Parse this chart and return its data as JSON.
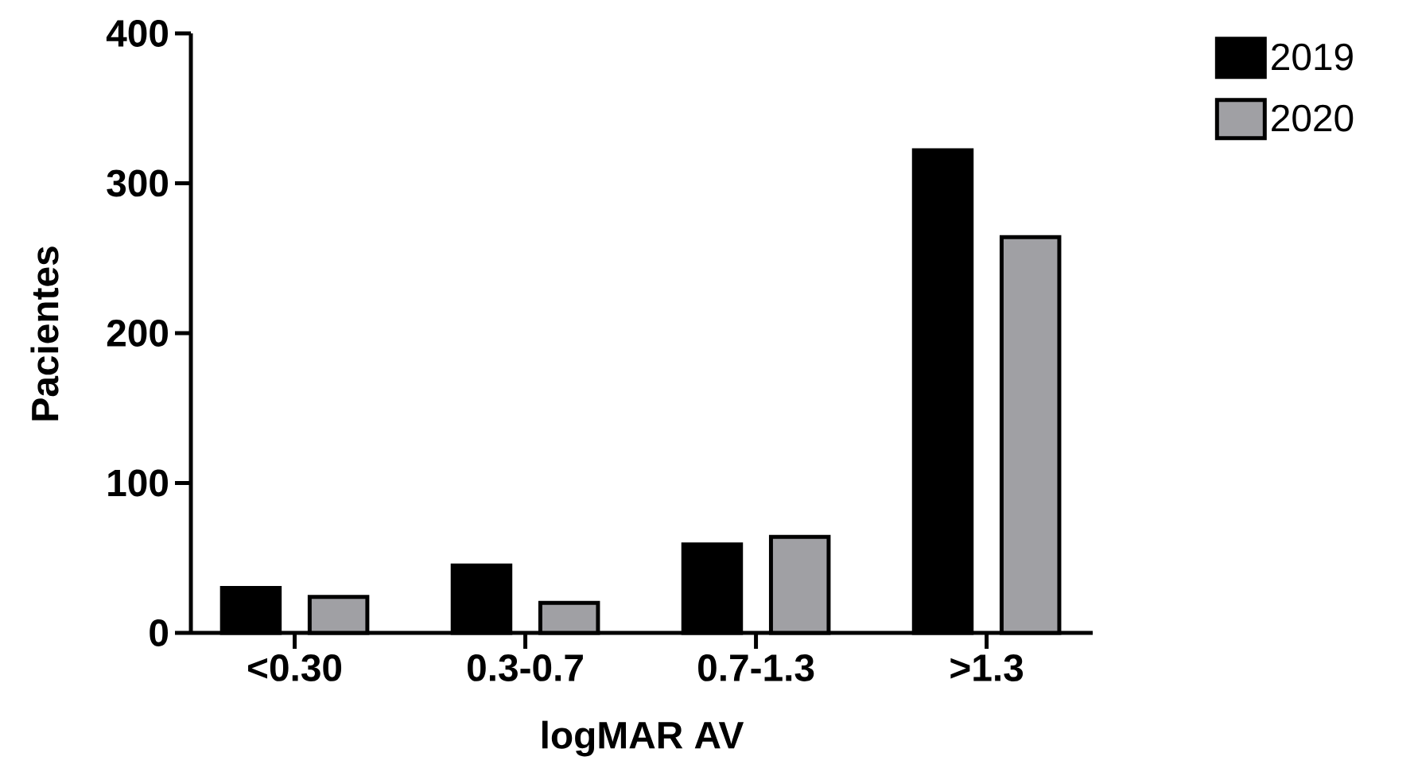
{
  "chart_data": {
    "type": "bar",
    "xlabel": "logMAR AV",
    "ylabel": "Pacientes",
    "categories": [
      "<0.30",
      "0.3-0.7",
      "0.7-1.3",
      ">1.3"
    ],
    "series": [
      {
        "name": "2019",
        "color": "#000000",
        "values": [
          30,
          45,
          59,
          322
        ]
      },
      {
        "name": "2020",
        "color": "#a0a0a4",
        "values": [
          24,
          20,
          64,
          264
        ]
      }
    ],
    "ylim": [
      0,
      400
    ],
    "yticks": [
      0,
      100,
      200,
      300,
      400
    ],
    "legend": "top right"
  }
}
